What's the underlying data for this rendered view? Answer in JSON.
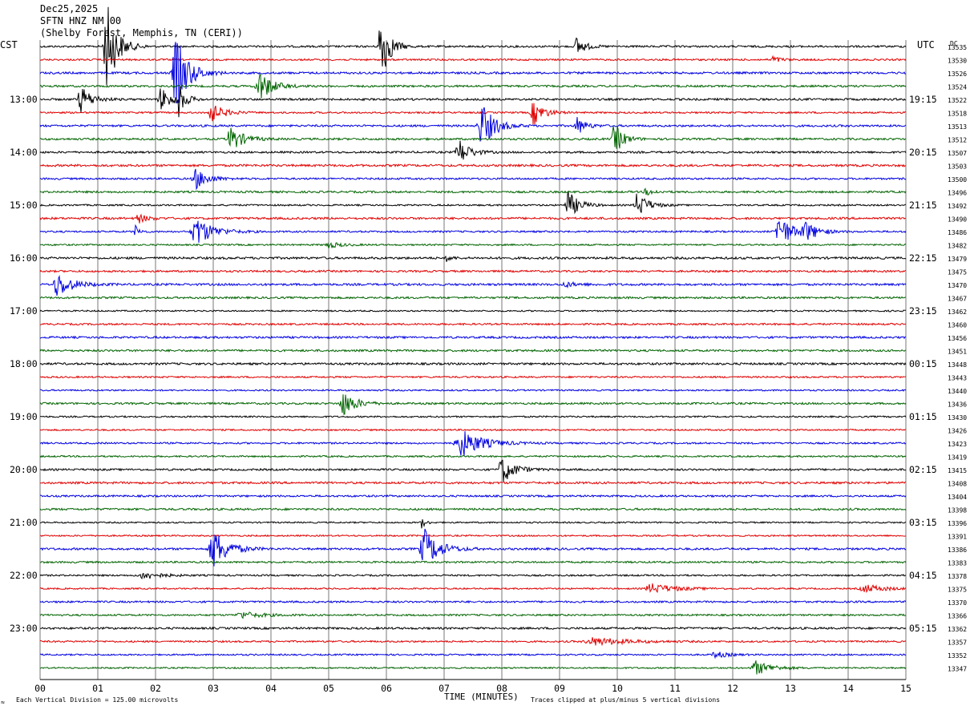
{
  "header": {
    "date": "Dec25,2025",
    "station": "SFTN HNZ NM 00",
    "location": "(Shelby Forest, Memphis, TN (CERI))"
  },
  "footer": {
    "scale_note": "Each Vertical Division = 125.00 microvolts",
    "clip_note": "Traces clipped at plus/minus 5 vertical divisions",
    "corner_mark": "≈"
  },
  "chart_data": {
    "type": "line",
    "subtype": "helicorder",
    "left_axis_label": "CST",
    "right_axis_label": "UTC",
    "right_corner_label": "DC",
    "xlabel": "TIME (MINUTES)",
    "xlim": [
      0,
      15
    ],
    "x_ticks": [
      "00",
      "01",
      "02",
      "03",
      "04",
      "05",
      "06",
      "07",
      "08",
      "09",
      "10",
      "11",
      "12",
      "13",
      "14",
      "15"
    ],
    "trace_minutes": 15,
    "grid": true,
    "trace_colors": [
      "#000000",
      "#e00000",
      "#0000e0",
      "#006400"
    ],
    "left_hour_labels": [
      "13:00",
      "14:00",
      "15:00",
      "16:00",
      "17:00",
      "18:00",
      "19:00",
      "20:00",
      "21:00",
      "22:00",
      "23:00"
    ],
    "right_hour_labels": [
      "19:15",
      "20:15",
      "21:15",
      "22:15",
      "23:15",
      "00:15",
      "01:15",
      "02:15",
      "03:15",
      "04:15",
      "05:15"
    ],
    "hour_label_first_row": 4,
    "hour_label_row_step": 4,
    "dc_offsets": [
      13535,
      13530,
      13526,
      13524,
      13522,
      13518,
      13513,
      13512,
      13507,
      13503,
      13500,
      13496,
      13492,
      13490,
      13486,
      13482,
      13479,
      13475,
      13470,
      13467,
      13462,
      13460,
      13456,
      13451,
      13448,
      13443,
      13440,
      13436,
      13430,
      13426,
      13423,
      13419,
      13415,
      13408,
      13404,
      13398,
      13396,
      13391,
      13386,
      13383,
      13378,
      13375,
      13370,
      13366,
      13362,
      13357,
      13352,
      13347
    ],
    "events": [
      {
        "row": 0,
        "minute": 1.15,
        "amp": 6,
        "dur": 0.25
      },
      {
        "row": 0,
        "minute": 5.9,
        "amp": 5,
        "dur": 0.2
      },
      {
        "row": 0,
        "minute": 9.3,
        "amp": 1.2,
        "dur": 0.2
      },
      {
        "row": 1,
        "minute": 12.7,
        "amp": 0.4,
        "dur": 0.2
      },
      {
        "row": 2,
        "minute": 2.35,
        "amp": 5,
        "dur": 0.3
      },
      {
        "row": 3,
        "minute": 3.8,
        "amp": 2,
        "dur": 0.3
      },
      {
        "row": 4,
        "minute": 0.7,
        "amp": 1.8,
        "dur": 0.25
      },
      {
        "row": 4,
        "minute": 2.1,
        "amp": 1.6,
        "dur": 0.25
      },
      {
        "row": 4,
        "minute": 2.4,
        "amp": 2,
        "dur": 0.15
      },
      {
        "row": 5,
        "minute": 2.95,
        "amp": 1.3,
        "dur": 0.3
      },
      {
        "row": 5,
        "minute": 8.55,
        "amp": 1.6,
        "dur": 0.25
      },
      {
        "row": 6,
        "minute": 7.65,
        "amp": 3,
        "dur": 0.3
      },
      {
        "row": 6,
        "minute": 9.3,
        "amp": 1.2,
        "dur": 0.2
      },
      {
        "row": 7,
        "minute": 3.3,
        "amp": 1.6,
        "dur": 0.3
      },
      {
        "row": 7,
        "minute": 9.95,
        "amp": 2.2,
        "dur": 0.2
      },
      {
        "row": 8,
        "minute": 7.25,
        "amp": 1.8,
        "dur": 0.25
      },
      {
        "row": 10,
        "minute": 2.7,
        "amp": 1.3,
        "dur": 0.3
      },
      {
        "row": 11,
        "minute": 10.5,
        "amp": 0.4,
        "dur": 0.2
      },
      {
        "row": 12,
        "minute": 9.15,
        "amp": 1.8,
        "dur": 0.25
      },
      {
        "row": 12,
        "minute": 10.35,
        "amp": 1.7,
        "dur": 0.25
      },
      {
        "row": 13,
        "minute": 1.7,
        "amp": 0.6,
        "dur": 0.2
      },
      {
        "row": 14,
        "minute": 1.65,
        "amp": 0.8,
        "dur": 0.1
      },
      {
        "row": 14,
        "minute": 2.7,
        "amp": 1.9,
        "dur": 0.4
      },
      {
        "row": 14,
        "minute": 12.8,
        "amp": 2.2,
        "dur": 0.3
      },
      {
        "row": 14,
        "minute": 13.25,
        "amp": 1.2,
        "dur": 0.3
      },
      {
        "row": 15,
        "minute": 5.0,
        "amp": 0.4,
        "dur": 0.3
      },
      {
        "row": 16,
        "minute": 7.05,
        "amp": 0.5,
        "dur": 0.1
      },
      {
        "row": 18,
        "minute": 0.3,
        "amp": 1.6,
        "dur": 0.35
      },
      {
        "row": 18,
        "minute": 9.1,
        "amp": 0.3,
        "dur": 0.3
      },
      {
        "row": 27,
        "minute": 5.25,
        "amp": 1.6,
        "dur": 0.3
      },
      {
        "row": 30,
        "minute": 7.3,
        "amp": 1.8,
        "dur": 0.5
      },
      {
        "row": 32,
        "minute": 8.0,
        "amp": 1.8,
        "dur": 0.3
      },
      {
        "row": 36,
        "minute": 6.6,
        "amp": 0.8,
        "dur": 0.1
      },
      {
        "row": 38,
        "minute": 3.0,
        "amp": 2.6,
        "dur": 0.35
      },
      {
        "row": 38,
        "minute": 6.65,
        "amp": 2.6,
        "dur": 0.35
      },
      {
        "row": 40,
        "minute": 1.8,
        "amp": 0.5,
        "dur": 0.4
      },
      {
        "row": 41,
        "minute": 10.6,
        "amp": 0.6,
        "dur": 0.6
      },
      {
        "row": 41,
        "minute": 14.3,
        "amp": 0.5,
        "dur": 0.5
      },
      {
        "row": 43,
        "minute": 3.5,
        "amp": 0.4,
        "dur": 0.5
      },
      {
        "row": 45,
        "minute": 9.6,
        "amp": 0.5,
        "dur": 0.8
      },
      {
        "row": 46,
        "minute": 11.7,
        "amp": 0.4,
        "dur": 0.3
      },
      {
        "row": 47,
        "minute": 12.4,
        "amp": 0.9,
        "dur": 0.4
      }
    ]
  }
}
